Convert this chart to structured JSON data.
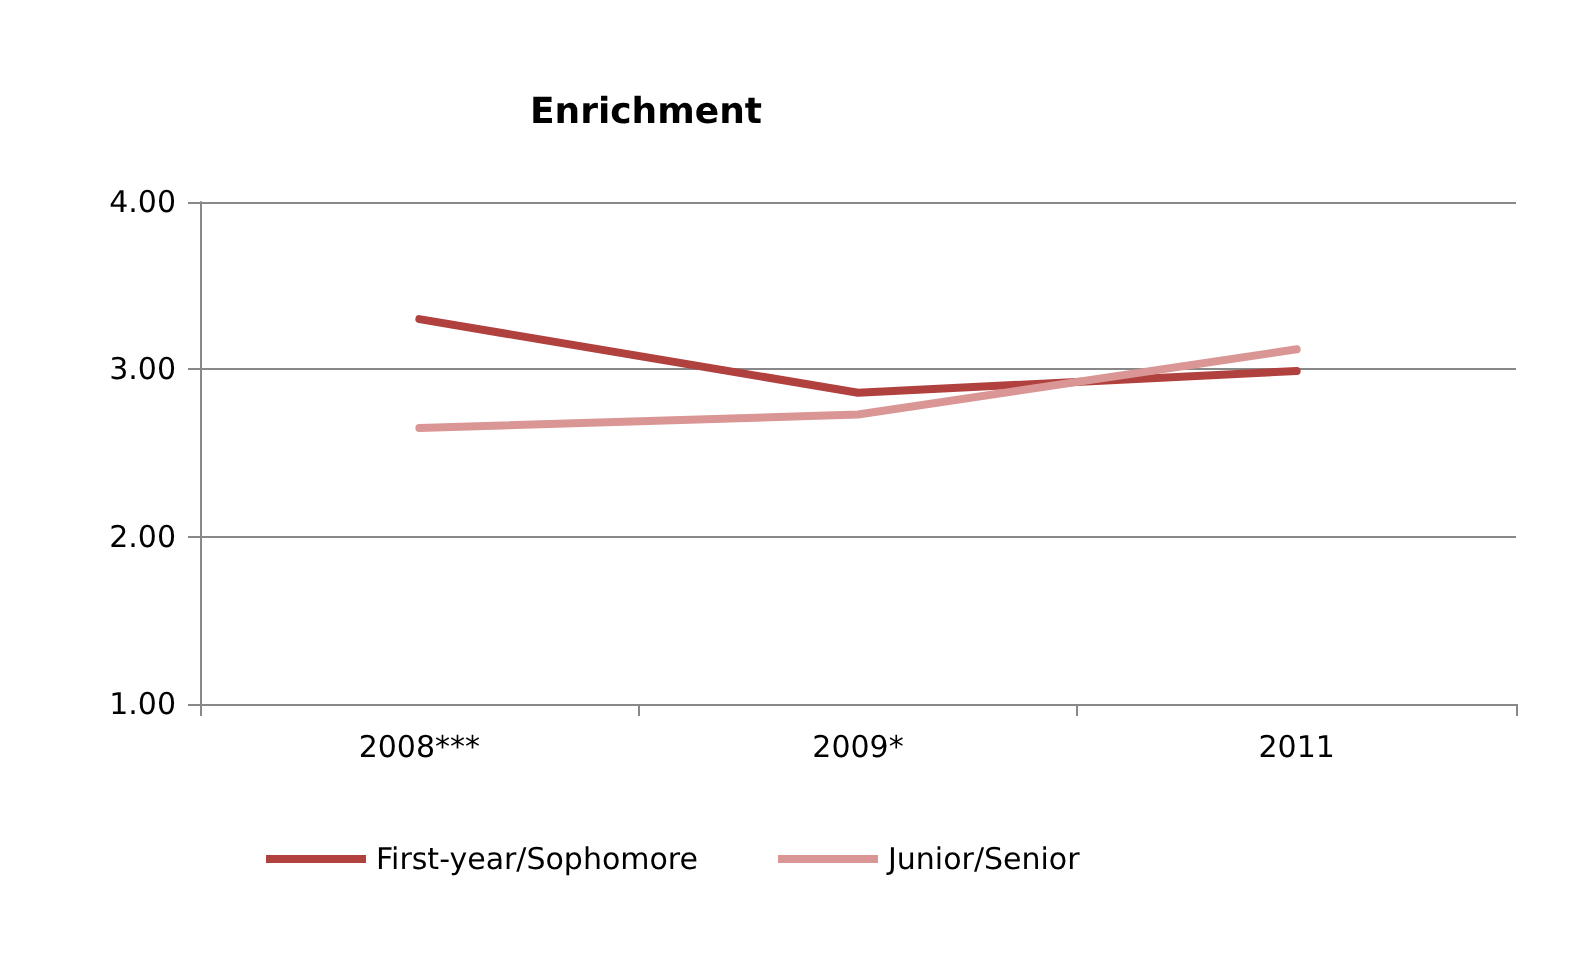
{
  "chart_data": {
    "type": "line",
    "title": "Enrichment",
    "categories": [
      "2008***",
      "2009*",
      "2011"
    ],
    "series": [
      {
        "name": "First-year/Sophomore",
        "color": "#b0413e",
        "values": [
          3.3,
          2.86,
          2.99
        ]
      },
      {
        "name": "Junior/Senior",
        "color": "#d99694",
        "values": [
          2.65,
          2.73,
          3.12
        ]
      }
    ],
    "ylim": [
      1,
      4
    ],
    "yticks": [
      {
        "value": 1,
        "label": "1.00"
      },
      {
        "value": 2,
        "label": "2.00"
      },
      {
        "value": 3,
        "label": "3.00"
      },
      {
        "value": 4,
        "label": "4.00"
      }
    ],
    "grid": "y",
    "legend": "bottom",
    "marker": "none",
    "line_style": "solid"
  }
}
